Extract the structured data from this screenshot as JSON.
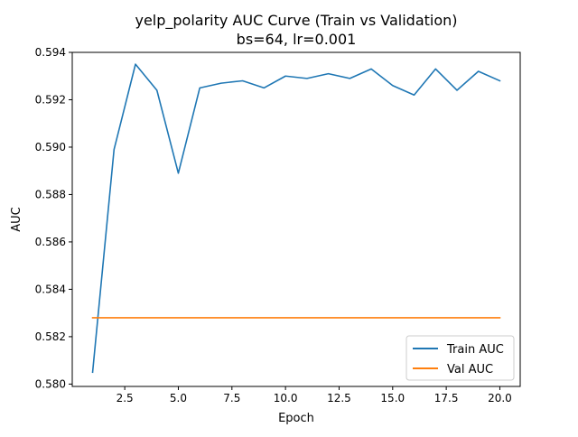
{
  "chart_data": {
    "type": "line",
    "title_line1": "yelp_polarity AUC Curve (Train vs Validation)",
    "title_line2": "bs=64, lr=0.001",
    "xlabel": "Epoch",
    "ylabel": "AUC",
    "xlim": [
      0.05,
      20.95
    ],
    "ylim": [
      0.5799,
      0.594
    ],
    "xticks": [
      2.5,
      5.0,
      7.5,
      10.0,
      12.5,
      15.0,
      17.5,
      20.0
    ],
    "xtick_labels": [
      "2.5",
      "5.0",
      "7.5",
      "10.0",
      "12.5",
      "15.0",
      "17.5",
      "20.0"
    ],
    "yticks": [
      0.58,
      0.582,
      0.584,
      0.586,
      0.588,
      0.59,
      0.592,
      0.594
    ],
    "ytick_labels": [
      "0.580",
      "0.582",
      "0.584",
      "0.586",
      "0.588",
      "0.590",
      "0.592",
      "0.594"
    ],
    "grid": false,
    "legend_position": "lower-right",
    "x": [
      1,
      2,
      3,
      4,
      5,
      6,
      7,
      8,
      9,
      10,
      11,
      12,
      13,
      14,
      15,
      16,
      17,
      18,
      19,
      20
    ],
    "series": [
      {
        "name": "Train AUC",
        "color": "#1f77b4",
        "values": [
          0.5805,
          0.5899,
          0.5935,
          0.5924,
          0.5889,
          0.5925,
          0.5927,
          0.5928,
          0.5925,
          0.593,
          0.5929,
          0.5931,
          0.5929,
          0.5933,
          0.5926,
          0.5922,
          0.5933,
          0.5924,
          0.5932,
          0.5928
        ]
      },
      {
        "name": "Val AUC",
        "color": "#ff7f0e",
        "values": [
          0.5828,
          0.5828,
          0.5828,
          0.5828,
          0.5828,
          0.5828,
          0.5828,
          0.5828,
          0.5828,
          0.5828,
          0.5828,
          0.5828,
          0.5828,
          0.5828,
          0.5828,
          0.5828,
          0.5828,
          0.5828,
          0.5828,
          0.5828
        ]
      }
    ]
  }
}
